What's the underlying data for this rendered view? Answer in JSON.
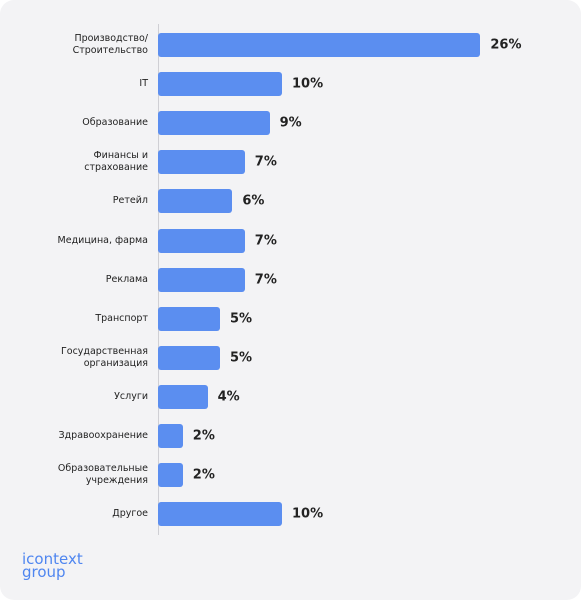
{
  "chart_data": {
    "type": "bar",
    "orientation": "horizontal",
    "categories": [
      "Производство/ Строительство",
      "IT",
      "Образование",
      "Финансы и страхование",
      "Ретейл",
      "Медицина, фарма",
      "Реклама",
      "Транспорт",
      "Государственная организация",
      "Услуги",
      "Здравоохранение",
      "Образовательные учреждения",
      "Другое"
    ],
    "values": [
      26,
      10,
      9,
      7,
      6,
      7,
      7,
      5,
      5,
      4,
      2,
      2,
      10
    ],
    "value_labels": [
      "26%",
      "10%",
      "9%",
      "7%",
      "6%",
      "7%",
      "7%",
      "5%",
      "5%",
      "4%",
      "2%",
      "2%",
      "10%"
    ],
    "color": "#5b8ef0"
  },
  "brand": [
    "icontext",
    "group"
  ]
}
